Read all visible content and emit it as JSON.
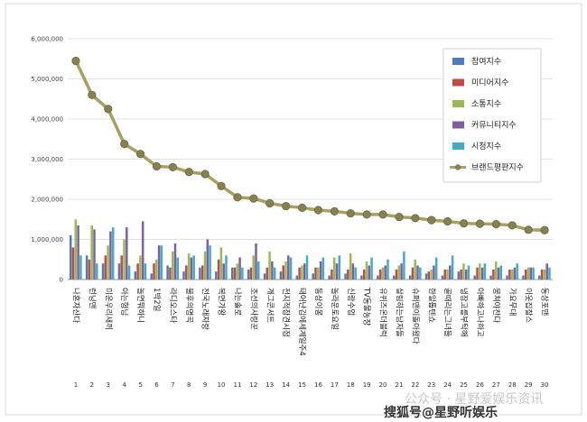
{
  "chart_data": {
    "type": "bar",
    "ylim": [
      0,
      6000000
    ],
    "yticks": [
      "0",
      "1,000,000",
      "2,000,000",
      "3,000,000",
      "4,000,000",
      "5,000,000",
      "6,000,000"
    ],
    "ranks": [
      "1",
      "2",
      "3",
      "4",
      "5",
      "6",
      "7",
      "8",
      "9",
      "10",
      "11",
      "12",
      "13",
      "14",
      "15",
      "16",
      "17",
      "18",
      "19",
      "20",
      "21",
      "22",
      "23",
      "24",
      "25",
      "26",
      "27",
      "28",
      "29",
      "30"
    ],
    "categories": [
      "나혼자산다",
      "런닝맨",
      "미운우리새끼",
      "아는형님",
      "놀면뭐하니",
      "1박2일",
      "라디오스타",
      "불후의명곡",
      "전국노래자랑",
      "복면가왕",
      "나는솔로",
      "조선의사랑꾼",
      "개그콘서트",
      "전지적참견시점",
      "태어난김에세계일주4",
      "동상이몽",
      "놀라운토요일",
      "신랑수업",
      "TV동물농장",
      "유퀴즈온더블럭",
      "살림하는남자들",
      "슈퍼맨이돌아왔다",
      "한일톱텐쇼",
      "골때리는그녀들",
      "냉장고를부탁해",
      "아빠하고나하고",
      "뭉쳐야찬다",
      "가요무대",
      "이웃집찰스",
      "동상포맨"
    ],
    "series": [
      {
        "name": "참여지수",
        "color": "#4a7ebb",
        "values": [
          1100000,
          600000,
          400000,
          400000,
          200000,
          150000,
          350000,
          200000,
          300000,
          200000,
          300000,
          250000,
          150000,
          200000,
          100000,
          150000,
          100000,
          150000,
          100000,
          100000,
          100000,
          100000,
          150000,
          100000,
          200000,
          100000,
          100000,
          100000,
          100000,
          100000
        ]
      },
      {
        "name": "미디어지수",
        "color": "#be4b48",
        "values": [
          800000,
          500000,
          600000,
          600000,
          400000,
          400000,
          300000,
          350000,
          350000,
          500000,
          300000,
          300000,
          300000,
          350000,
          300000,
          300000,
          250000,
          250000,
          250000,
          250000,
          250000,
          300000,
          200000,
          250000,
          250000,
          300000,
          250000,
          250000,
          250000,
          250000
        ]
      },
      {
        "name": "소통지수",
        "color": "#98b954",
        "values": [
          1500000,
          1350000,
          850000,
          1000000,
          600000,
          500000,
          700000,
          650000,
          700000,
          800000,
          400000,
          600000,
          700000,
          450000,
          350000,
          300000,
          550000,
          650000,
          450000,
          300000,
          350000,
          500000,
          250000,
          250000,
          400000,
          400000,
          450000,
          250000,
          300000,
          250000
        ]
      },
      {
        "name": "커뮤니티지수",
        "color": "#7d60a0",
        "values": [
          1350000,
          1250000,
          1200000,
          1300000,
          1450000,
          850000,
          900000,
          550000,
          1000000,
          400000,
          550000,
          900000,
          450000,
          600000,
          400000,
          450000,
          400000,
          400000,
          350000,
          350000,
          400000,
          350000,
          350000,
          350000,
          250000,
          300000,
          300000,
          300000,
          300000,
          400000
        ]
      },
      {
        "name": "시청지수",
        "color": "#46aac5",
        "values": [
          600000,
          400000,
          1300000,
          350000,
          400000,
          850000,
          550000,
          600000,
          850000,
          600000,
          300000,
          450000,
          300000,
          550000,
          600000,
          550000,
          600000,
          300000,
          550000,
          500000,
          700000,
          300000,
          550000,
          600000,
          350000,
          400000,
          350000,
          400000,
          300000,
          300000
        ]
      }
    ],
    "line_series": {
      "name": "브랜드평판지수",
      "color": "#a5a165",
      "values": [
        5450000,
        4600000,
        4250000,
        3380000,
        3130000,
        2820000,
        2800000,
        2680000,
        2630000,
        2330000,
        2050000,
        2020000,
        1900000,
        1830000,
        1790000,
        1730000,
        1700000,
        1650000,
        1620000,
        1620000,
        1560000,
        1530000,
        1480000,
        1450000,
        1400000,
        1390000,
        1380000,
        1350000,
        1240000,
        1230000
      ]
    },
    "legend_position": "top-right"
  },
  "watermark": {
    "top": "公众号 · 星野爱娱乐资讯",
    "bottom": "搜狐号@星野听娱乐"
  }
}
